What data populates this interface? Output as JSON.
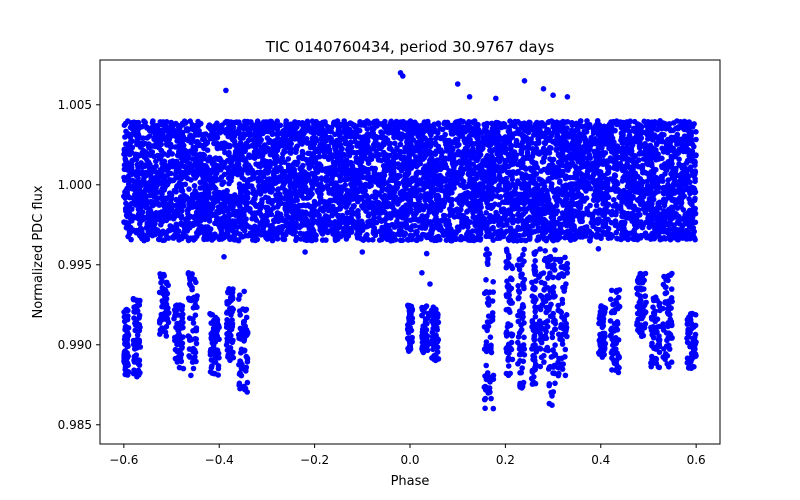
{
  "chart_data": {
    "type": "scatter",
    "title": "TIC 0140760434, period 30.9767 days",
    "xlabel": "Phase",
    "ylabel": "Normalized PDC flux",
    "xlim": [
      -0.65,
      0.65
    ],
    "ylim": [
      0.9838,
      1.0078
    ],
    "xticks": [
      -0.6,
      -0.4,
      -0.2,
      0.0,
      0.2,
      0.4,
      0.6
    ],
    "xtick_labels": [
      "−0.6",
      "−0.4",
      "−0.2",
      "0.0",
      "0.2",
      "0.4",
      "0.6"
    ],
    "yticks": [
      0.985,
      0.99,
      0.995,
      1.0,
      1.005
    ],
    "ytick_labels": [
      "0.985",
      "0.990",
      "0.995",
      "1.000",
      "1.005"
    ],
    "grid": false,
    "marker_color": "#0000ff",
    "baseline": {
      "x_range": [
        -0.6,
        0.6
      ],
      "y_core": [
        0.9972,
        1.0033
      ],
      "y_envelope": [
        0.9965,
        1.004
      ]
    },
    "dip_groups": [
      {
        "x_range": [
          -0.6,
          -0.59
        ],
        "y_range": [
          0.988,
          0.9922
        ]
      },
      {
        "x_range": [
          -0.58,
          -0.565
        ],
        "y_range": [
          0.988,
          0.993
        ]
      },
      {
        "x_range": [
          -0.525,
          -0.505
        ],
        "y_range": [
          0.9905,
          0.9945
        ]
      },
      {
        "x_range": [
          -0.495,
          -0.475
        ],
        "y_range": [
          0.9885,
          0.9925
        ]
      },
      {
        "x_range": [
          -0.465,
          -0.445
        ],
        "y_range": [
          0.988,
          0.9945
        ]
      },
      {
        "x_range": [
          -0.42,
          -0.4
        ],
        "y_range": [
          0.988,
          0.992
        ]
      },
      {
        "x_range": [
          -0.385,
          -0.37
        ],
        "y_range": [
          0.989,
          0.9935
        ]
      },
      {
        "x_range": [
          -0.36,
          -0.34
        ],
        "y_range": [
          0.987,
          0.9935
        ]
      },
      {
        "x_range": [
          -0.005,
          0.005
        ],
        "y_range": [
          0.9895,
          0.9925
        ]
      },
      {
        "x_range": [
          0.025,
          0.04
        ],
        "y_range": [
          0.9895,
          0.9925
        ]
      },
      {
        "x_range": [
          0.045,
          0.06
        ],
        "y_range": [
          0.989,
          0.9925
        ]
      },
      {
        "x_range": [
          0.155,
          0.175
        ],
        "y_range": [
          0.986,
          0.996
        ]
      },
      {
        "x_range": [
          0.2,
          0.215
        ],
        "y_range": [
          0.988,
          0.996
        ]
      },
      {
        "x_range": [
          0.225,
          0.24
        ],
        "y_range": [
          0.9865,
          0.996
        ]
      },
      {
        "x_range": [
          0.255,
          0.265
        ],
        "y_range": [
          0.9875,
          0.996
        ]
      },
      {
        "x_range": [
          0.27,
          0.29
        ],
        "y_range": [
          0.9885,
          0.996
        ]
      },
      {
        "x_range": [
          0.29,
          0.305
        ],
        "y_range": [
          0.9862,
          0.996
        ]
      },
      {
        "x_range": [
          0.31,
          0.33
        ],
        "y_range": [
          0.988,
          0.9955
        ]
      },
      {
        "x_range": [
          0.395,
          0.41
        ],
        "y_range": [
          0.989,
          0.9925
        ]
      },
      {
        "x_range": [
          0.42,
          0.44
        ],
        "y_range": [
          0.9882,
          0.9935
        ]
      },
      {
        "x_range": [
          0.475,
          0.495
        ],
        "y_range": [
          0.9905,
          0.9945
        ]
      },
      {
        "x_range": [
          0.505,
          0.525
        ],
        "y_range": [
          0.9885,
          0.993
        ]
      },
      {
        "x_range": [
          0.53,
          0.55
        ],
        "y_range": [
          0.9885,
          0.9945
        ]
      },
      {
        "x_range": [
          0.58,
          0.6
        ],
        "y_range": [
          0.9885,
          0.992
        ]
      }
    ],
    "outliers": [
      {
        "x": -0.386,
        "y": 1.0059
      },
      {
        "x": -0.02,
        "y": 1.007
      },
      {
        "x": -0.015,
        "y": 1.0068
      },
      {
        "x": 0.1,
        "y": 1.0063
      },
      {
        "x": 0.24,
        "y": 1.0065
      },
      {
        "x": 0.28,
        "y": 1.006
      },
      {
        "x": 0.3,
        "y": 1.0056
      },
      {
        "x": 0.125,
        "y": 1.0055
      },
      {
        "x": 0.18,
        "y": 1.0054
      },
      {
        "x": 0.33,
        "y": 1.0055
      },
      {
        "x": -0.22,
        "y": 0.9958
      },
      {
        "x": -0.1,
        "y": 0.9958
      },
      {
        "x": 0.025,
        "y": 0.9945
      },
      {
        "x": 0.042,
        "y": 0.9938
      },
      {
        "x": 0.035,
        "y": 0.9957
      },
      {
        "x": -0.39,
        "y": 0.9955
      },
      {
        "x": 0.395,
        "y": 0.996
      }
    ]
  }
}
